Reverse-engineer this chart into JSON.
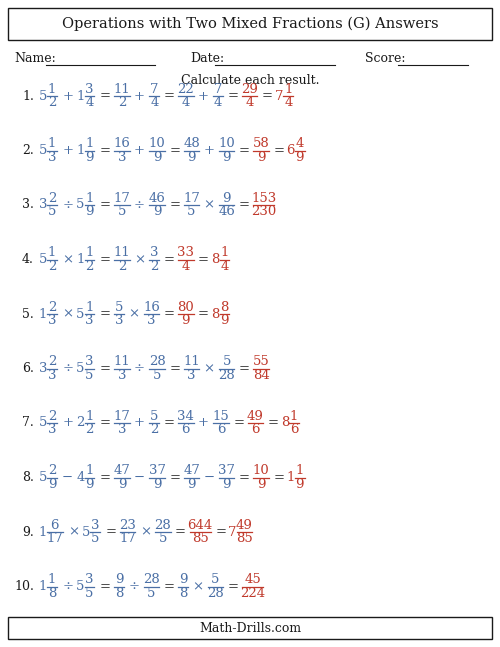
{
  "title": "Operations with Two Mixed Fractions (G) Answers",
  "subtitle": "Calculate each result.",
  "footer": "Math-Drills.com",
  "bg_color": "#ffffff",
  "blue_color": "#4a6fa5",
  "red_color": "#c0392b",
  "black_color": "#1a1a1a",
  "problems": [
    {
      "num": "1.",
      "q_whole1": "5",
      "q_num1": "1",
      "q_den1": "2",
      "op": "+",
      "q_whole2": "1",
      "q_num2": "3",
      "q_den2": "4",
      "step1_num1": "11",
      "step1_den1": "2",
      "step1_op": "+",
      "step1_num2": "7",
      "step1_den2": "4",
      "step2_num1": "22",
      "step2_den1": "4",
      "step2_op": "+",
      "step2_num2": "7",
      "step2_den2": "4",
      "has_step2": true,
      "ans_num": "29",
      "ans_den": "4",
      "ans_whole": "7",
      "ans_fnum": "1",
      "ans_fden": "4",
      "has_mixed_ans": true
    },
    {
      "num": "2.",
      "q_whole1": "5",
      "q_num1": "1",
      "q_den1": "3",
      "op": "+",
      "q_whole2": "1",
      "q_num2": "1",
      "q_den2": "9",
      "step1_num1": "16",
      "step1_den1": "3",
      "step1_op": "+",
      "step1_num2": "10",
      "step1_den2": "9",
      "step2_num1": "48",
      "step2_den1": "9",
      "step2_op": "+",
      "step2_num2": "10",
      "step2_den2": "9",
      "has_step2": true,
      "ans_num": "58",
      "ans_den": "9",
      "ans_whole": "6",
      "ans_fnum": "4",
      "ans_fden": "9",
      "has_mixed_ans": true
    },
    {
      "num": "3.",
      "q_whole1": "3",
      "q_num1": "2",
      "q_den1": "5",
      "op": "÷",
      "q_whole2": "5",
      "q_num2": "1",
      "q_den2": "9",
      "step1_num1": "17",
      "step1_den1": "5",
      "step1_op": "÷",
      "step1_num2": "46",
      "step1_den2": "9",
      "step2_num1": "17",
      "step2_den1": "5",
      "step2_op": "×",
      "step2_num2": "9",
      "step2_den2": "46",
      "has_step2": true,
      "ans_num": "153",
      "ans_den": "230",
      "ans_whole": "",
      "ans_fnum": "",
      "ans_fden": "",
      "has_mixed_ans": false
    },
    {
      "num": "4.",
      "q_whole1": "5",
      "q_num1": "1",
      "q_den1": "2",
      "op": "×",
      "q_whole2": "1",
      "q_num2": "1",
      "q_den2": "2",
      "step1_num1": "11",
      "step1_den1": "2",
      "step1_op": "×",
      "step1_num2": "3",
      "step1_den2": "2",
      "step2_num1": "",
      "step2_den1": "",
      "step2_op": "",
      "step2_num2": "",
      "step2_den2": "",
      "has_step2": false,
      "ans_num": "33",
      "ans_den": "4",
      "ans_whole": "8",
      "ans_fnum": "1",
      "ans_fden": "4",
      "has_mixed_ans": true
    },
    {
      "num": "5.",
      "q_whole1": "1",
      "q_num1": "2",
      "q_den1": "3",
      "op": "×",
      "q_whole2": "5",
      "q_num2": "1",
      "q_den2": "3",
      "step1_num1": "5",
      "step1_den1": "3",
      "step1_op": "×",
      "step1_num2": "16",
      "step1_den2": "3",
      "step2_num1": "",
      "step2_den1": "",
      "step2_op": "",
      "step2_num2": "",
      "step2_den2": "",
      "has_step2": false,
      "ans_num": "80",
      "ans_den": "9",
      "ans_whole": "8",
      "ans_fnum": "8",
      "ans_fden": "9",
      "has_mixed_ans": true
    },
    {
      "num": "6.",
      "q_whole1": "3",
      "q_num1": "2",
      "q_den1": "3",
      "op": "÷",
      "q_whole2": "5",
      "q_num2": "3",
      "q_den2": "5",
      "step1_num1": "11",
      "step1_den1": "3",
      "step1_op": "÷",
      "step1_num2": "28",
      "step1_den2": "5",
      "step2_num1": "11",
      "step2_den1": "3",
      "step2_op": "×",
      "step2_num2": "5",
      "step2_den2": "28",
      "has_step2": true,
      "ans_num": "55",
      "ans_den": "84",
      "ans_whole": "",
      "ans_fnum": "",
      "ans_fden": "",
      "has_mixed_ans": false
    },
    {
      "num": "7.",
      "q_whole1": "5",
      "q_num1": "2",
      "q_den1": "3",
      "op": "+",
      "q_whole2": "2",
      "q_num2": "1",
      "q_den2": "2",
      "step1_num1": "17",
      "step1_den1": "3",
      "step1_op": "+",
      "step1_num2": "5",
      "step1_den2": "2",
      "step2_num1": "34",
      "step2_den1": "6",
      "step2_op": "+",
      "step2_num2": "15",
      "step2_den2": "6",
      "has_step2": true,
      "ans_num": "49",
      "ans_den": "6",
      "ans_whole": "8",
      "ans_fnum": "1",
      "ans_fden": "6",
      "has_mixed_ans": true
    },
    {
      "num": "8.",
      "q_whole1": "5",
      "q_num1": "2",
      "q_den1": "9",
      "op": "−",
      "q_whole2": "4",
      "q_num2": "1",
      "q_den2": "9",
      "step1_num1": "47",
      "step1_den1": "9",
      "step1_op": "−",
      "step1_num2": "37",
      "step1_den2": "9",
      "step2_num1": "47",
      "step2_den1": "9",
      "step2_op": "−",
      "step2_num2": "37",
      "step2_den2": "9",
      "has_step2": true,
      "ans_num": "10",
      "ans_den": "9",
      "ans_whole": "1",
      "ans_fnum": "1",
      "ans_fden": "9",
      "has_mixed_ans": true
    },
    {
      "num": "9.",
      "q_whole1": "1",
      "q_num1": "6",
      "q_den1": "17",
      "op": "×",
      "q_whole2": "5",
      "q_num2": "3",
      "q_den2": "5",
      "step1_num1": "23",
      "step1_den1": "17",
      "step1_op": "×",
      "step1_num2": "28",
      "step1_den2": "5",
      "step2_num1": "",
      "step2_den1": "",
      "step2_op": "",
      "step2_num2": "",
      "step2_den2": "",
      "has_step2": false,
      "ans_num": "644",
      "ans_den": "85",
      "ans_whole": "7",
      "ans_fnum": "49",
      "ans_fden": "85",
      "has_mixed_ans": true
    },
    {
      "num": "10.",
      "q_whole1": "1",
      "q_num1": "1",
      "q_den1": "8",
      "op": "÷",
      "q_whole2": "5",
      "q_num2": "3",
      "q_den2": "5",
      "step1_num1": "9",
      "step1_den1": "8",
      "step1_op": "÷",
      "step1_num2": "28",
      "step1_den2": "5",
      "step2_num1": "9",
      "step2_den1": "8",
      "step2_op": "×",
      "step2_num2": "5",
      "step2_den2": "28",
      "has_step2": true,
      "ans_num": "45",
      "ans_den": "224",
      "ans_whole": "",
      "ans_fnum": "",
      "ans_fden": "",
      "has_mixed_ans": false
    }
  ]
}
